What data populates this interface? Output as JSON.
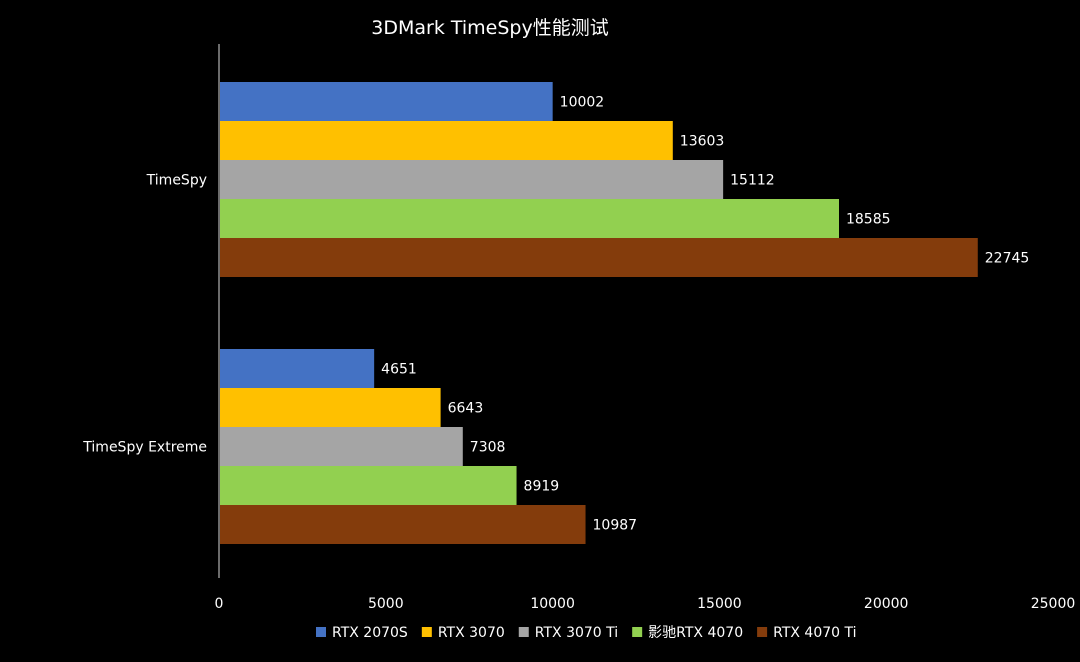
{
  "chart_data": {
    "type": "bar",
    "orientation": "horizontal",
    "title": "3DMark TimeSpy性能测试",
    "categories": [
      "TimeSpy",
      "TimeSpy Extreme"
    ],
    "series": [
      {
        "name": "RTX 2070S",
        "color": "#4472C4",
        "values": [
          10002,
          4651
        ]
      },
      {
        "name": "RTX 3070",
        "color": "#FFC000",
        "values": [
          13603,
          6643
        ]
      },
      {
        "name": "RTX 3070 Ti",
        "color": "#A5A5A5",
        "values": [
          15112,
          7308
        ]
      },
      {
        "name": "影驰RTX 4070",
        "color": "#92D050",
        "values": [
          18585,
          8919
        ]
      },
      {
        "name": "RTX 4070 Ti",
        "color": "#843C0C",
        "values": [
          22745,
          10987
        ]
      }
    ],
    "xlim": [
      0,
      25000
    ],
    "xticks": [
      0,
      5000,
      10000,
      15000,
      20000,
      25000
    ],
    "xlabel": "",
    "ylabel": "",
    "grid": false,
    "legend_position": "bottom",
    "data_labels": true
  }
}
